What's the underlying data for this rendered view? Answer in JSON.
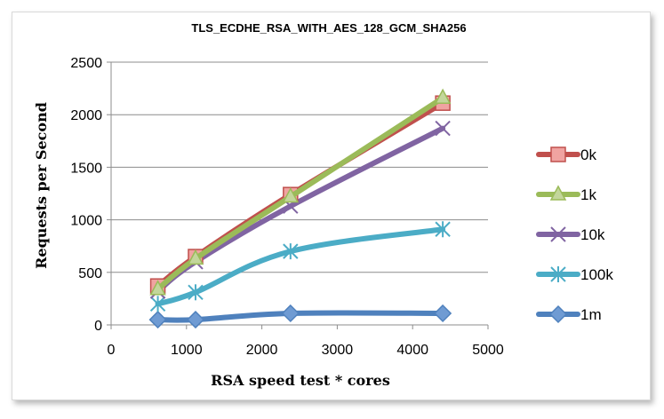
{
  "chart_data": {
    "type": "line",
    "title": "TLS_ECDHE_RSA_WITH_AES_128_GCM_SHA256",
    "xlabel": "RSA speed test * cores",
    "ylabel": "Requests per Second",
    "xlim": [
      0,
      5000
    ],
    "ylim": [
      0,
      2500
    ],
    "xticks": [
      0,
      1000,
      2000,
      3000,
      4000,
      5000
    ],
    "yticks": [
      0,
      500,
      1000,
      1500,
      2000,
      2500
    ],
    "grid": true,
    "legend_position": "right",
    "x": [
      620,
      1120,
      2380,
      4400
    ],
    "series": [
      {
        "name": "0k",
        "values": [
          370,
          650,
          1240,
          2110
        ],
        "color": "#c0504d",
        "fill": "#f0a3a1",
        "marker": "square"
      },
      {
        "name": "1k",
        "values": [
          340,
          630,
          1220,
          2160
        ],
        "color": "#9bbb59",
        "fill": "#c3d69b",
        "marker": "triangle"
      },
      {
        "name": "10k",
        "values": [
          320,
          600,
          1130,
          1870
        ],
        "color": "#8064a2",
        "fill": "#8064a2",
        "marker": "x"
      },
      {
        "name": "100k",
        "values": [
          200,
          310,
          700,
          910
        ],
        "color": "#4bacc6",
        "fill": "#4bacc6",
        "marker": "star"
      },
      {
        "name": "1m",
        "values": [
          50,
          50,
          110,
          110
        ],
        "color": "#4f81bd",
        "fill": "#6f9bd3",
        "marker": "diamond"
      }
    ]
  }
}
